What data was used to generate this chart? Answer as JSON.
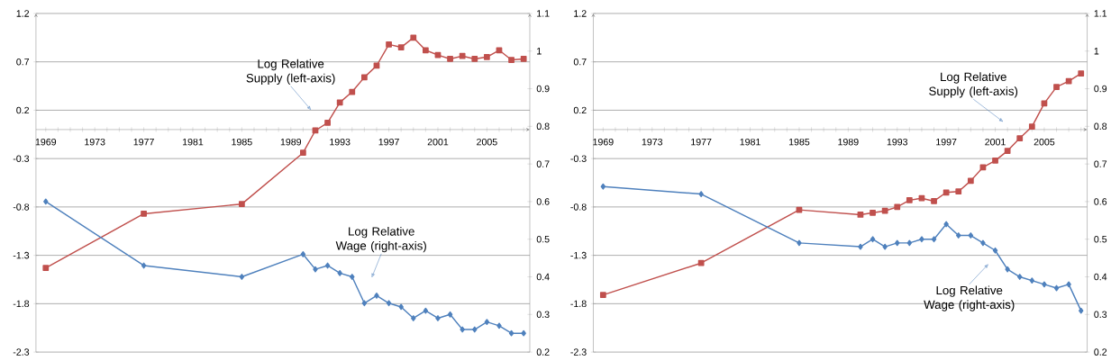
{
  "chart_data": [
    {
      "type": "line",
      "x": [
        1969,
        1977,
        1985,
        1990,
        1991,
        1992,
        1993,
        1994,
        1995,
        1996,
        1997,
        1998,
        1999,
        2000,
        2001,
        2002,
        2003,
        2004,
        2005,
        2006,
        2007,
        2008
      ],
      "series": [
        {
          "color": "#c0504d",
          "marker": "square",
          "values": [
            -1.43,
            -0.87,
            -0.77,
            -0.24,
            -0.01,
            0.07,
            0.28,
            0.39,
            0.54,
            0.66,
            0.88,
            0.85,
            0.95,
            0.82,
            0.77,
            0.73,
            0.76,
            0.73,
            0.75,
            0.82,
            0.72,
            0.73
          ]
        },
        {
          "color": "#4f81bd",
          "marker": "diamond",
          "axis": "y2",
          "values": [
            0.6,
            0.43,
            0.4,
            0.46,
            0.42,
            0.43,
            0.41,
            0.4,
            0.33,
            0.35,
            0.33,
            0.32,
            0.29,
            0.31,
            0.29,
            0.3,
            0.26,
            0.26,
            0.28,
            0.27,
            0.25,
            0.25
          ]
        }
      ],
      "xlim": [
        1968.2,
        2008.5
      ],
      "xticks": [
        {
          "value": 1969,
          "label": "1969"
        },
        {
          "value": 1970,
          "label": null
        },
        {
          "value": 1971,
          "label": null
        },
        {
          "value": 1972,
          "label": null
        },
        {
          "value": 1973,
          "label": "1973"
        },
        {
          "value": 1974,
          "label": null
        },
        {
          "value": 1975,
          "label": null
        },
        {
          "value": 1976,
          "label": null
        },
        {
          "value": 1977,
          "label": "1977"
        },
        {
          "value": 1978,
          "label": null
        },
        {
          "value": 1979,
          "label": null
        },
        {
          "value": 1980,
          "label": null
        },
        {
          "value": 1981,
          "label": "1981"
        },
        {
          "value": 1982,
          "label": null
        },
        {
          "value": 1983,
          "label": null
        },
        {
          "value": 1984,
          "label": null
        },
        {
          "value": 1985,
          "label": "1985"
        },
        {
          "value": 1986,
          "label": null
        },
        {
          "value": 1987,
          "label": null
        },
        {
          "value": 1988,
          "label": null
        },
        {
          "value": 1989,
          "label": "1989"
        },
        {
          "value": 1990,
          "label": null
        },
        {
          "value": 1991,
          "label": null
        },
        {
          "value": 1992,
          "label": null
        },
        {
          "value": 1993,
          "label": "1993"
        },
        {
          "value": 1994,
          "label": null
        },
        {
          "value": 1995,
          "label": null
        },
        {
          "value": 1996,
          "label": null
        },
        {
          "value": 1997,
          "label": "1997"
        },
        {
          "value": 1998,
          "label": null
        },
        {
          "value": 1999,
          "label": null
        },
        {
          "value": 2000,
          "label": null
        },
        {
          "value": 2001,
          "label": "2001"
        },
        {
          "value": 2002,
          "label": null
        },
        {
          "value": 2003,
          "label": null
        },
        {
          "value": 2004,
          "label": null
        },
        {
          "value": 2005,
          "label": "2005"
        },
        {
          "value": 2006,
          "label": null
        },
        {
          "value": 2007,
          "label": null
        },
        {
          "value": 2008,
          "label": null
        }
      ],
      "ylim": [
        -2.3,
        1.2
      ],
      "yticks": [
        -2.3,
        -1.8,
        -1.3,
        -0.8,
        -0.3,
        0.2,
        0.7,
        1.2
      ],
      "y2lim": [
        0.2,
        1.1
      ],
      "y2ticks": [
        0.2,
        0.3,
        0.4,
        0.5,
        0.6,
        0.7,
        0.8,
        0.9,
        1,
        1.1
      ],
      "grid": "y",
      "annotations": [
        "Log Relative Supply (left-axis)",
        "Log Relative Wage (right-axis)"
      ]
    },
    {
      "type": "line",
      "x": [
        1969,
        1977,
        1985,
        1990,
        1991,
        1992,
        1993,
        1994,
        1995,
        1996,
        1997,
        1998,
        1999,
        2000,
        2001,
        2002,
        2003,
        2004,
        2005,
        2006,
        2007,
        2008
      ],
      "series": [
        {
          "color": "#c0504d",
          "marker": "square",
          "values": [
            -1.71,
            -1.38,
            -0.83,
            -0.88,
            -0.86,
            -0.84,
            -0.8,
            -0.73,
            -0.71,
            -0.74,
            -0.65,
            -0.64,
            -0.53,
            -0.39,
            -0.32,
            -0.22,
            -0.09,
            0.03,
            0.27,
            0.44,
            0.5,
            0.58
          ]
        },
        {
          "color": "#4f81bd",
          "marker": "diamond",
          "axis": "y2",
          "values": [
            0.64,
            0.62,
            0.49,
            0.48,
            0.5,
            0.48,
            0.49,
            0.49,
            0.5,
            0.5,
            0.54,
            0.51,
            0.51,
            0.49,
            0.47,
            0.42,
            0.4,
            0.39,
            0.38,
            0.37,
            0.38,
            0.31
          ]
        }
      ],
      "xlim": [
        1968.2,
        2008.5
      ],
      "xticks": [
        {
          "value": 1969,
          "label": "1969"
        },
        {
          "value": 1970,
          "label": null
        },
        {
          "value": 1971,
          "label": null
        },
        {
          "value": 1972,
          "label": null
        },
        {
          "value": 1973,
          "label": "1973"
        },
        {
          "value": 1974,
          "label": null
        },
        {
          "value": 1975,
          "label": null
        },
        {
          "value": 1976,
          "label": null
        },
        {
          "value": 1977,
          "label": "1977"
        },
        {
          "value": 1978,
          "label": null
        },
        {
          "value": 1979,
          "label": null
        },
        {
          "value": 1980,
          "label": null
        },
        {
          "value": 1981,
          "label": "1981"
        },
        {
          "value": 1982,
          "label": null
        },
        {
          "value": 1983,
          "label": null
        },
        {
          "value": 1984,
          "label": null
        },
        {
          "value": 1985,
          "label": "1985"
        },
        {
          "value": 1986,
          "label": null
        },
        {
          "value": 1987,
          "label": null
        },
        {
          "value": 1988,
          "label": null
        },
        {
          "value": 1989,
          "label": "1989"
        },
        {
          "value": 1990,
          "label": null
        },
        {
          "value": 1991,
          "label": null
        },
        {
          "value": 1992,
          "label": null
        },
        {
          "value": 1993,
          "label": "1993"
        },
        {
          "value": 1994,
          "label": null
        },
        {
          "value": 1995,
          "label": null
        },
        {
          "value": 1996,
          "label": null
        },
        {
          "value": 1997,
          "label": "1997"
        },
        {
          "value": 1998,
          "label": null
        },
        {
          "value": 1999,
          "label": null
        },
        {
          "value": 2000,
          "label": null
        },
        {
          "value": 2001,
          "label": "2001"
        },
        {
          "value": 2002,
          "label": null
        },
        {
          "value": 2003,
          "label": null
        },
        {
          "value": 2004,
          "label": null
        },
        {
          "value": 2005,
          "label": "2005"
        },
        {
          "value": 2006,
          "label": null
        },
        {
          "value": 2007,
          "label": null
        },
        {
          "value": 2008,
          "label": null
        }
      ],
      "ylim": [
        -2.3,
        1.2
      ],
      "yticks": [
        -2.3,
        -1.8,
        -1.3,
        -0.8,
        -0.3,
        0.2,
        0.7,
        1.2
      ],
      "y2lim": [
        0.2,
        1.1
      ],
      "y2ticks": [
        0.2,
        0.3,
        0.4,
        0.5,
        0.6,
        0.7,
        0.8,
        0.9,
        1,
        1.1
      ],
      "grid": "y",
      "annotations": [
        "Log Relative Supply (left-axis)",
        "Log Relative Wage (right-axis)"
      ]
    }
  ]
}
